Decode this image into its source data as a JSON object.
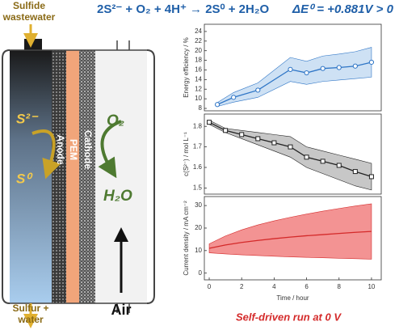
{
  "equation": {
    "reaction": "2S²⁻ + O₂ + 4H⁺ → 2S⁰ + 2H₂O",
    "potential": "ΔE⁰ = +0.881V > 0"
  },
  "diagram": {
    "inlet": [
      "Sulfide",
      "wastewater"
    ],
    "outlet": [
      "Sulfur +",
      "water"
    ],
    "air": "Air",
    "reactant": "S²⁻",
    "product": "S⁰",
    "anode": "Anode",
    "membrane": "PEM",
    "cathode": "Cathode",
    "oxidant": "O₂",
    "water": "H₂O"
  },
  "caption": "Self-driven run at 0 V",
  "chart_data": [
    {
      "type": "line",
      "ylabel": "Energy efficiency / %",
      "color": "#2e75c6",
      "band_color": "#bdd7f0",
      "marker": "circle",
      "x": [
        0.5,
        1.5,
        3,
        5,
        6,
        7,
        8,
        9,
        10
      ],
      "values": [
        8.8,
        10.3,
        11.8,
        16.1,
        15.4,
        16.3,
        16.5,
        16.8,
        17.6
      ],
      "lower": [
        8.4,
        9.3,
        10.3,
        13.6,
        13.0,
        13.6,
        13.9,
        14.2,
        14.5
      ],
      "upper": [
        9.2,
        11.3,
        13.3,
        18.6,
        17.8,
        18.9,
        19.3,
        19.8,
        20.7
      ],
      "xlim": [
        -0.3,
        10.6
      ],
      "ylim": [
        7.5,
        25.5
      ],
      "yticks": [
        8,
        10,
        12,
        14,
        16,
        18,
        20,
        22,
        24
      ]
    },
    {
      "type": "line",
      "ylabel": "c(S²⁻) / mol L⁻¹",
      "color": "#222222",
      "band_color": "#b4b4b4",
      "marker": "square",
      "x": [
        0,
        1,
        2,
        3,
        4,
        5,
        6,
        7,
        8,
        9,
        10
      ],
      "values": [
        1.82,
        1.78,
        1.76,
        1.74,
        1.72,
        1.7,
        1.65,
        1.63,
        1.61,
        1.58,
        1.555
      ],
      "lower": [
        1.81,
        1.77,
        1.74,
        1.71,
        1.68,
        1.65,
        1.6,
        1.57,
        1.54,
        1.51,
        1.49
      ],
      "upper": [
        1.83,
        1.79,
        1.78,
        1.77,
        1.76,
        1.75,
        1.7,
        1.68,
        1.66,
        1.64,
        1.62
      ],
      "xlim": [
        -0.3,
        10.6
      ],
      "ylim": [
        1.47,
        1.86
      ],
      "yticks": [
        1.5,
        1.6,
        1.7,
        1.8
      ]
    },
    {
      "type": "line",
      "ylabel": "Current density / mA cm⁻²",
      "xlabel": "Time / hour",
      "color": "#d42a2a",
      "band_color": "#ef6f6f",
      "marker": "none",
      "x": [
        0,
        1,
        2,
        3,
        4,
        5,
        6,
        7,
        8,
        9,
        10
      ],
      "values": [
        11,
        12.5,
        13.6,
        14.5,
        15.3,
        16,
        16.6,
        17.1,
        17.6,
        18.1,
        18.5
      ],
      "lower": [
        9,
        8.5,
        8.1,
        7.8,
        7.5,
        7.2,
        7,
        6.8,
        6.6,
        6.4,
        6.2
      ],
      "upper": [
        13,
        16.5,
        19.2,
        21.4,
        23.2,
        24.8,
        26.2,
        27.5,
        28.7,
        29.8,
        30.8
      ],
      "xlim": [
        -0.3,
        10.6
      ],
      "ylim": [
        -3,
        34
      ],
      "yticks": [
        0,
        10,
        20,
        30
      ],
      "xticks": [
        0,
        2,
        4,
        6,
        8,
        10
      ]
    }
  ]
}
